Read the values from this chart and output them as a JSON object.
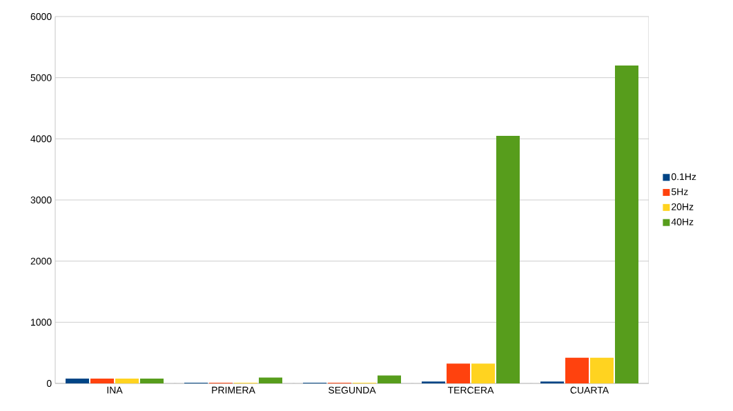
{
  "chart_data": {
    "type": "bar",
    "categories": [
      "INA",
      "PRIMERA",
      "SEGUNDA",
      "TERCERA",
      "CUARTA"
    ],
    "series": [
      {
        "name": "0.1Hz",
        "color": "#004586",
        "values": [
          80,
          10,
          10,
          30,
          30
        ]
      },
      {
        "name": "5Hz",
        "color": "#ff420e",
        "values": [
          80,
          10,
          10,
          325,
          420
        ]
      },
      {
        "name": "20Hz",
        "color": "#ffd320",
        "values": [
          80,
          10,
          10,
          325,
          420
        ]
      },
      {
        "name": "40Hz",
        "color": "#579d1c",
        "values": [
          80,
          95,
          130,
          4050,
          5200
        ]
      }
    ],
    "ylim": [
      0,
      6000
    ],
    "yticks": [
      0,
      1000,
      2000,
      3000,
      4000,
      5000,
      6000
    ],
    "grid": "y",
    "legend": "right"
  }
}
